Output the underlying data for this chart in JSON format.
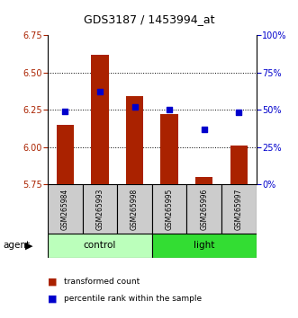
{
  "title": "GDS3187 / 1453994_at",
  "samples": [
    "GSM265984",
    "GSM265993",
    "GSM265998",
    "GSM265995",
    "GSM265996",
    "GSM265997"
  ],
  "transformed_counts": [
    6.15,
    6.62,
    6.34,
    6.22,
    5.8,
    6.01
  ],
  "percentile_ranks": [
    49,
    62,
    52,
    50,
    37,
    48
  ],
  "ylim_left": [
    5.75,
    6.75
  ],
  "ylim_right": [
    0,
    100
  ],
  "yticks_left": [
    5.75,
    6.0,
    6.25,
    6.5,
    6.75
  ],
  "yticks_right": [
    0,
    25,
    50,
    75,
    100
  ],
  "bar_color": "#aa2200",
  "dot_color": "#0000cc",
  "bar_width": 0.5,
  "bg_color": "#ffffff",
  "label_bar": "transformed count",
  "label_dot": "percentile rank within the sample",
  "control_color": "#bbffbb",
  "light_color": "#33dd33",
  "sample_box_color": "#cccccc"
}
